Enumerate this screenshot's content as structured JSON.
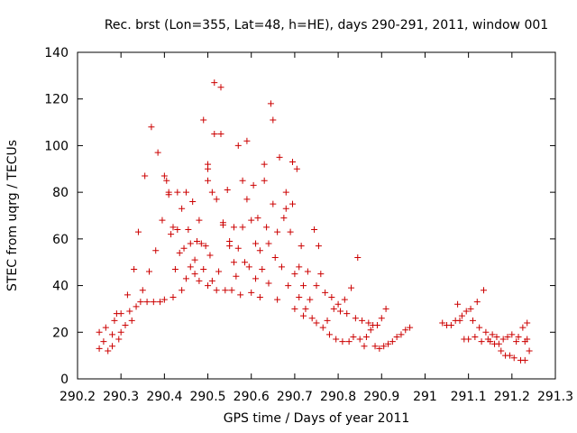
{
  "chart_data": {
    "type": "scatter",
    "title": "Rec. brst (Lon=355, Lat=48, h=HE), days 290-291, 2011, window 001",
    "xlabel": "GPS time / Days of year 2011",
    "ylabel": "STEC from uqrg / TECUs",
    "xlim": [
      290.2,
      291.3
    ],
    "ylim": [
      0,
      140
    ],
    "x_ticks": [
      290.2,
      290.3,
      290.4,
      290.5,
      290.6,
      290.7,
      290.8,
      290.9,
      291,
      291.1,
      291.2,
      291.3
    ],
    "x_tick_labels": [
      "290.2",
      "290.3",
      "290.4",
      "290.5",
      "290.6",
      "290.7",
      "290.8",
      "290.9",
      "291",
      "291.1",
      "291.2",
      "291.3"
    ],
    "y_ticks": [
      0,
      20,
      40,
      60,
      80,
      100,
      120,
      140
    ],
    "y_tick_labels": [
      "0",
      "20",
      "40",
      "60",
      "80",
      "100",
      "120",
      "140"
    ],
    "grid": false,
    "marker": "plus",
    "color": "#cc0000",
    "points": [
      [
        290.25,
        20
      ],
      [
        290.25,
        13
      ],
      [
        290.26,
        16
      ],
      [
        290.265,
        22
      ],
      [
        290.27,
        12
      ],
      [
        290.28,
        14
      ],
      [
        290.28,
        19
      ],
      [
        290.285,
        25
      ],
      [
        290.29,
        28
      ],
      [
        290.295,
        17
      ],
      [
        290.3,
        28
      ],
      [
        290.3,
        20
      ],
      [
        290.31,
        23
      ],
      [
        290.315,
        36
      ],
      [
        290.32,
        29
      ],
      [
        290.325,
        25
      ],
      [
        290.33,
        47
      ],
      [
        290.335,
        31
      ],
      [
        290.34,
        63
      ],
      [
        290.345,
        33
      ],
      [
        290.35,
        38
      ],
      [
        290.355,
        87
      ],
      [
        290.36,
        33
      ],
      [
        290.365,
        46
      ],
      [
        290.37,
        108
      ],
      [
        290.375,
        33
      ],
      [
        290.38,
        55
      ],
      [
        290.385,
        97
      ],
      [
        290.39,
        33
      ],
      [
        290.395,
        68
      ],
      [
        290.4,
        87
      ],
      [
        290.4,
        34
      ],
      [
        290.405,
        85
      ],
      [
        290.41,
        80
      ],
      [
        290.41,
        79
      ],
      [
        290.415,
        62
      ],
      [
        290.42,
        35
      ],
      [
        290.42,
        65
      ],
      [
        290.425,
        47
      ],
      [
        290.43,
        80
      ],
      [
        290.43,
        64
      ],
      [
        290.435,
        54
      ],
      [
        290.44,
        38
      ],
      [
        290.44,
        73
      ],
      [
        290.445,
        56
      ],
      [
        290.45,
        43
      ],
      [
        290.45,
        80
      ],
      [
        290.455,
        64
      ],
      [
        290.46,
        48
      ],
      [
        290.46,
        58
      ],
      [
        290.465,
        76
      ],
      [
        290.47,
        45
      ],
      [
        290.47,
        51
      ],
      [
        290.475,
        59
      ],
      [
        290.48,
        68
      ],
      [
        290.48,
        42
      ],
      [
        290.485,
        58
      ],
      [
        290.49,
        111
      ],
      [
        290.49,
        47
      ],
      [
        290.495,
        57
      ],
      [
        290.5,
        92
      ],
      [
        290.5,
        90
      ],
      [
        290.5,
        85
      ],
      [
        290.5,
        40
      ],
      [
        290.505,
        53
      ],
      [
        290.51,
        42
      ],
      [
        290.51,
        80
      ],
      [
        290.515,
        127
      ],
      [
        290.515,
        105
      ],
      [
        290.52,
        77
      ],
      [
        290.52,
        38
      ],
      [
        290.525,
        46
      ],
      [
        290.53,
        125
      ],
      [
        290.53,
        105
      ],
      [
        290.535,
        67
      ],
      [
        290.535,
        66
      ],
      [
        290.54,
        38
      ],
      [
        290.545,
        81
      ],
      [
        290.55,
        59
      ],
      [
        290.55,
        57
      ],
      [
        290.555,
        38
      ],
      [
        290.56,
        50
      ],
      [
        290.56,
        65
      ],
      [
        290.565,
        44
      ],
      [
        290.57,
        100
      ],
      [
        290.57,
        56
      ],
      [
        290.575,
        36
      ],
      [
        290.58,
        85
      ],
      [
        290.58,
        65
      ],
      [
        290.585,
        50
      ],
      [
        290.59,
        102
      ],
      [
        290.59,
        77
      ],
      [
        290.595,
        48
      ],
      [
        290.6,
        68
      ],
      [
        290.6,
        37
      ],
      [
        290.605,
        83
      ],
      [
        290.61,
        58
      ],
      [
        290.61,
        43
      ],
      [
        290.615,
        69
      ],
      [
        290.62,
        35
      ],
      [
        290.62,
        55
      ],
      [
        290.625,
        47
      ],
      [
        290.63,
        92
      ],
      [
        290.63,
        85
      ],
      [
        290.635,
        65
      ],
      [
        290.64,
        58
      ],
      [
        290.64,
        41
      ],
      [
        290.645,
        118
      ],
      [
        290.65,
        111
      ],
      [
        290.65,
        75
      ],
      [
        290.655,
        52
      ],
      [
        290.66,
        34
      ],
      [
        290.66,
        63
      ],
      [
        290.665,
        95
      ],
      [
        290.67,
        48
      ],
      [
        290.675,
        69
      ],
      [
        290.68,
        80
      ],
      [
        290.68,
        73
      ],
      [
        290.685,
        40
      ],
      [
        290.69,
        63
      ],
      [
        290.695,
        93
      ],
      [
        290.695,
        75
      ],
      [
        290.7,
        45
      ],
      [
        290.7,
        30
      ],
      [
        290.705,
        90
      ],
      [
        290.71,
        48
      ],
      [
        290.71,
        35
      ],
      [
        290.715,
        57
      ],
      [
        290.72,
        40
      ],
      [
        290.72,
        27
      ],
      [
        290.725,
        30
      ],
      [
        290.73,
        46
      ],
      [
        290.735,
        34
      ],
      [
        290.74,
        26
      ],
      [
        290.745,
        64
      ],
      [
        290.75,
        40
      ],
      [
        290.75,
        24
      ],
      [
        290.755,
        57
      ],
      [
        290.76,
        45
      ],
      [
        290.765,
        22
      ],
      [
        290.77,
        37
      ],
      [
        290.775,
        25
      ],
      [
        290.78,
        19
      ],
      [
        290.785,
        35
      ],
      [
        290.79,
        30
      ],
      [
        290.795,
        17
      ],
      [
        290.8,
        32
      ],
      [
        290.805,
        29
      ],
      [
        290.81,
        16
      ],
      [
        290.815,
        34
      ],
      [
        290.82,
        28
      ],
      [
        290.825,
        16
      ],
      [
        290.83,
        39
      ],
      [
        290.835,
        18
      ],
      [
        290.84,
        26
      ],
      [
        290.845,
        52
      ],
      [
        290.85,
        17
      ],
      [
        290.855,
        25
      ],
      [
        290.86,
        14
      ],
      [
        290.865,
        18
      ],
      [
        290.87,
        24
      ],
      [
        290.875,
        21
      ],
      [
        290.88,
        23
      ],
      [
        290.885,
        14
      ],
      [
        290.89,
        23
      ],
      [
        290.895,
        13
      ],
      [
        290.9,
        26
      ],
      [
        290.905,
        14
      ],
      [
        290.91,
        30
      ],
      [
        290.915,
        15
      ],
      [
        290.925,
        16
      ],
      [
        290.935,
        18
      ],
      [
        290.945,
        19
      ],
      [
        290.955,
        21
      ],
      [
        290.965,
        22
      ],
      [
        291.04,
        24
      ],
      [
        291.05,
        23
      ],
      [
        291.06,
        23
      ],
      [
        291.07,
        25
      ],
      [
        291.075,
        32
      ],
      [
        291.08,
        25
      ],
      [
        291.085,
        27
      ],
      [
        291.09,
        17
      ],
      [
        291.095,
        29
      ],
      [
        291.1,
        17
      ],
      [
        291.105,
        30
      ],
      [
        291.11,
        25
      ],
      [
        291.115,
        18
      ],
      [
        291.12,
        33
      ],
      [
        291.125,
        22
      ],
      [
        291.13,
        16
      ],
      [
        291.135,
        38
      ],
      [
        291.14,
        20
      ],
      [
        291.145,
        17
      ],
      [
        291.15,
        16
      ],
      [
        291.155,
        19
      ],
      [
        291.16,
        15
      ],
      [
        291.165,
        18
      ],
      [
        291.17,
        15
      ],
      [
        291.175,
        12
      ],
      [
        291.18,
        17
      ],
      [
        291.185,
        10
      ],
      [
        291.19,
        18
      ],
      [
        291.195,
        10
      ],
      [
        291.2,
        19
      ],
      [
        291.205,
        9
      ],
      [
        291.21,
        16
      ],
      [
        291.215,
        18
      ],
      [
        291.22,
        8
      ],
      [
        291.225,
        22
      ],
      [
        291.23,
        16
      ],
      [
        291.23,
        8
      ],
      [
        291.235,
        24
      ],
      [
        291.235,
        17
      ],
      [
        291.24,
        12
      ]
    ]
  }
}
